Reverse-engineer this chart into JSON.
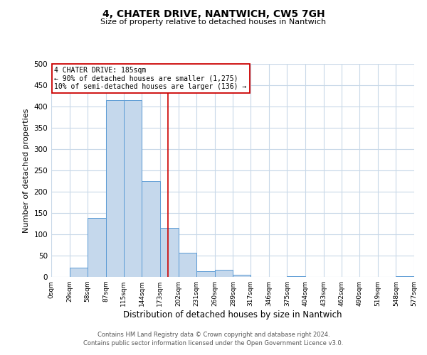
{
  "title": "4, CHATER DRIVE, NANTWICH, CW5 7GH",
  "subtitle": "Size of property relative to detached houses in Nantwich",
  "xlabel": "Distribution of detached houses by size in Nantwich",
  "ylabel": "Number of detached properties",
  "bin_edges": [
    0,
    29,
    58,
    87,
    115,
    144,
    173,
    202,
    231,
    260,
    289,
    317,
    346,
    375,
    404,
    433,
    462,
    490,
    519,
    548,
    577
  ],
  "counts": [
    0,
    22,
    138,
    415,
    415,
    225,
    115,
    57,
    14,
    16,
    5,
    0,
    0,
    1,
    0,
    0,
    0,
    0,
    0,
    1
  ],
  "bar_color": "#c5d8ec",
  "bar_edge_color": "#5b9bd5",
  "vline_color": "#cc0000",
  "vline_x": 185,
  "annotation_title": "4 CHATER DRIVE: 185sqm",
  "annotation_line1": "← 90% of detached houses are smaller (1,275)",
  "annotation_line2": "10% of semi-detached houses are larger (136) →",
  "annotation_box_color": "#ffffff",
  "annotation_box_edge_color": "#cc0000",
  "ylim": [
    0,
    500
  ],
  "xlim": [
    0,
    577
  ],
  "tick_labels": [
    "0sqm",
    "29sqm",
    "58sqm",
    "87sqm",
    "115sqm",
    "144sqm",
    "173sqm",
    "202sqm",
    "231sqm",
    "260sqm",
    "289sqm",
    "317sqm",
    "346sqm",
    "375sqm",
    "404sqm",
    "433sqm",
    "462sqm",
    "490sqm",
    "519sqm",
    "548sqm",
    "577sqm"
  ],
  "tick_positions": [
    0,
    29,
    58,
    87,
    115,
    144,
    173,
    202,
    231,
    260,
    289,
    317,
    346,
    375,
    404,
    433,
    462,
    490,
    519,
    548,
    577
  ],
  "yticks": [
    0,
    50,
    100,
    150,
    200,
    250,
    300,
    350,
    400,
    450,
    500
  ],
  "footer_line1": "Contains HM Land Registry data © Crown copyright and database right 2024.",
  "footer_line2": "Contains public sector information licensed under the Open Government Licence v3.0.",
  "background_color": "#ffffff",
  "grid_color": "#c8d8e8"
}
